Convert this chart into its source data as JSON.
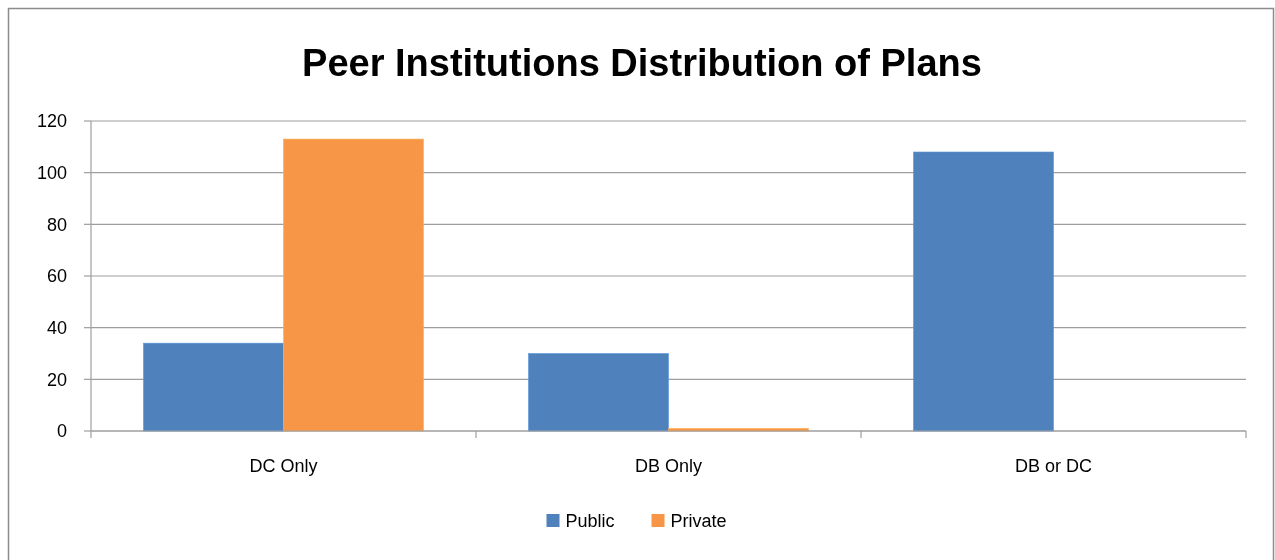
{
  "chart_data": {
    "type": "bar",
    "title": "Peer Institutions Distribution of Plans",
    "categories": [
      "DC Only",
      "DB Only",
      "DB or DC"
    ],
    "series": [
      {
        "name": "Public",
        "color": "#4f81bd",
        "values": [
          34,
          30,
          108
        ]
      },
      {
        "name": "Private",
        "color": "#f79646",
        "values": [
          113,
          1,
          0
        ]
      }
    ],
    "ylim": [
      0,
      120
    ],
    "yticks": [
      0,
      20,
      40,
      60,
      80,
      100,
      120
    ],
    "grid": "y",
    "legend": "bottom"
  }
}
